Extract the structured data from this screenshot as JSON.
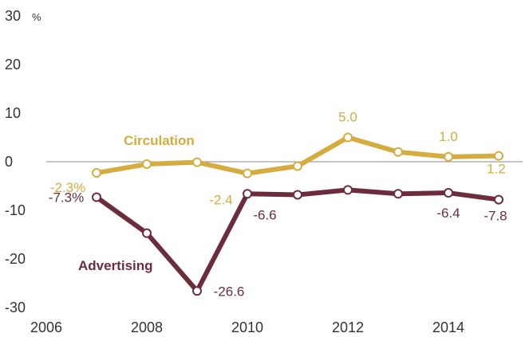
{
  "chart_data": {
    "type": "line",
    "title": "",
    "xlabel": "",
    "ylabel": "",
    "y_unit": "%",
    "xlim": [
      2006,
      2015
    ],
    "ylim": [
      -30,
      30
    ],
    "x_ticks": [
      2006,
      2008,
      2010,
      2012,
      2014
    ],
    "y_ticks": [
      30,
      20,
      10,
      0,
      -10,
      -20,
      -30
    ],
    "grid": false,
    "zero_line": true,
    "x": [
      2007,
      2008,
      2009,
      2010,
      2011,
      2012,
      2013,
      2014,
      2015
    ],
    "series": [
      {
        "name": "Circulation",
        "color": "#d4ac3f",
        "values": [
          -2.3,
          -0.5,
          -0.1,
          -2.4,
          -0.9,
          5.0,
          2.0,
          1.0,
          1.2
        ],
        "labeled_points": [
          {
            "index": 0,
            "text": "-2.3%"
          },
          {
            "index": 3,
            "text": "-2.4"
          },
          {
            "index": 5,
            "text": "5.0"
          },
          {
            "index": 7,
            "text": "1.0"
          },
          {
            "index": 8,
            "text": "1.2"
          }
        ]
      },
      {
        "name": "Advertising",
        "color": "#6b2d3c",
        "values": [
          -7.3,
          -14.7,
          -26.6,
          -6.6,
          -6.8,
          -5.8,
          -6.6,
          -6.4,
          -7.8
        ],
        "labeled_points": [
          {
            "index": 0,
            "text": "-7.3%"
          },
          {
            "index": 2,
            "text": "-26.6"
          },
          {
            "index": 3,
            "text": "-6.6"
          },
          {
            "index": 7,
            "text": "-6.4"
          },
          {
            "index": 8,
            "text": "-7.8"
          }
        ]
      }
    ]
  }
}
